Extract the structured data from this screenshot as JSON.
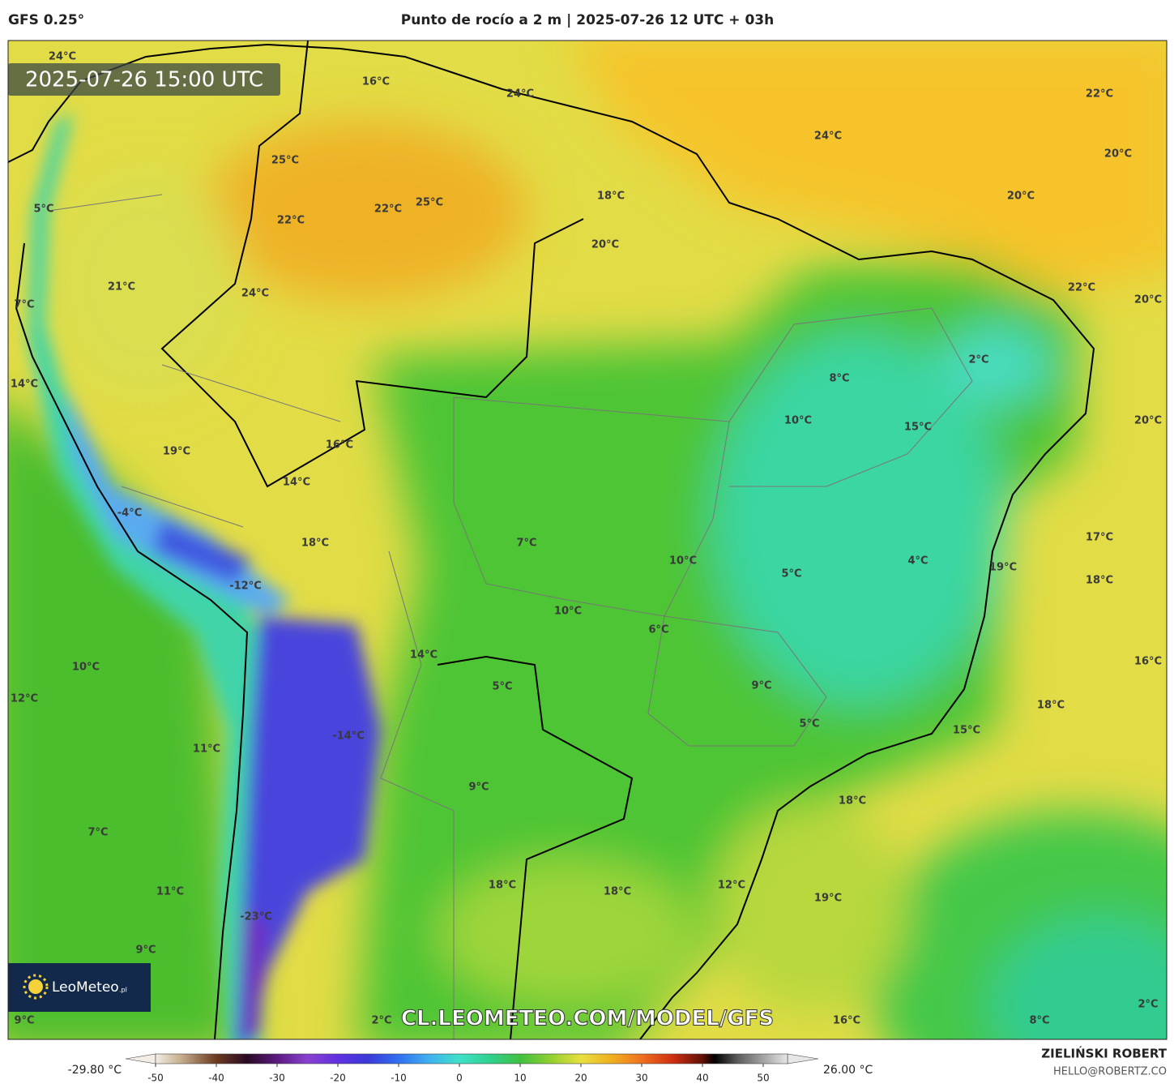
{
  "header": {
    "model": "GFS 0.25°",
    "title": "Punto de rocío a 2 m | 2025-07-26 12 UTC + 03h"
  },
  "map": {
    "valid_time": "2025-07-26 15:00 UTC",
    "labels": [
      "24°C",
      "16°C",
      "24°C",
      "22°C",
      "24°C",
      "20°C",
      "25°C",
      "18°C",
      "20°C",
      "5°C",
      "22°C",
      "25°C",
      "22°C",
      "20°C",
      "22°C",
      "21°C",
      "24°C",
      "20°C",
      "7°C",
      "2°C",
      "8°C",
      "14°C",
      "10°C",
      "15°C",
      "20°C",
      "16°C",
      "19°C",
      "14°C",
      "-4°C",
      "17°C",
      "18°C",
      "7°C",
      "10°C",
      "4°C",
      "19°C",
      "5°C",
      "18°C",
      "-12°C",
      "10°C",
      "6°C",
      "14°C",
      "16°C",
      "10°C",
      "5°C",
      "9°C",
      "12°C",
      "18°C",
      "5°C",
      "15°C",
      "-14°C",
      "11°C",
      "9°C",
      "18°C",
      "7°C",
      "18°C",
      "12°C",
      "18°C",
      "11°C",
      "19°C",
      "-23°C",
      "9°C",
      "2°C",
      "9°C",
      "2°C",
      "16°C",
      "8°C"
    ],
    "watermark": "CL.LEOMETEO.COM/MODEL/GFS",
    "logo": {
      "name": "LeoMeteo",
      "suffix": ".pl"
    }
  },
  "colorbar": {
    "min_label": "-29.80 °C",
    "max_label": "26.00 °C",
    "lim": [
      -50,
      54
    ],
    "ticks": [
      -50,
      -40,
      -30,
      -20,
      -10,
      0,
      10,
      20,
      30,
      40,
      50
    ],
    "stops": [
      {
        "value": -50,
        "color": "#f2eee6"
      },
      {
        "value": -46,
        "color": "#c8b090"
      },
      {
        "value": -40,
        "color": "#6b3a20"
      },
      {
        "value": -35,
        "color": "#2a0a22"
      },
      {
        "value": -30,
        "color": "#5a1a80"
      },
      {
        "value": -25,
        "color": "#8a40d0"
      },
      {
        "value": -20,
        "color": "#6030e0"
      },
      {
        "value": -15,
        "color": "#3a3ad8"
      },
      {
        "value": -10,
        "color": "#3070f0"
      },
      {
        "value": -5,
        "color": "#40b0f0"
      },
      {
        "value": 0,
        "color": "#40e0c8"
      },
      {
        "value": 5,
        "color": "#30d090"
      },
      {
        "value": 10,
        "color": "#40c040"
      },
      {
        "value": 15,
        "color": "#90d030"
      },
      {
        "value": 20,
        "color": "#e8e040"
      },
      {
        "value": 25,
        "color": "#f0b020"
      },
      {
        "value": 30,
        "color": "#f07020"
      },
      {
        "value": 35,
        "color": "#d03010"
      },
      {
        "value": 40,
        "color": "#601008"
      },
      {
        "value": 42,
        "color": "#000000"
      },
      {
        "value": 46,
        "color": "#606060"
      },
      {
        "value": 54,
        "color": "#e6e6e6"
      }
    ]
  },
  "footer": {
    "author": "ZIELIŃSKI ROBERT",
    "contact": "HELLO@ROBERTZ.CO"
  }
}
